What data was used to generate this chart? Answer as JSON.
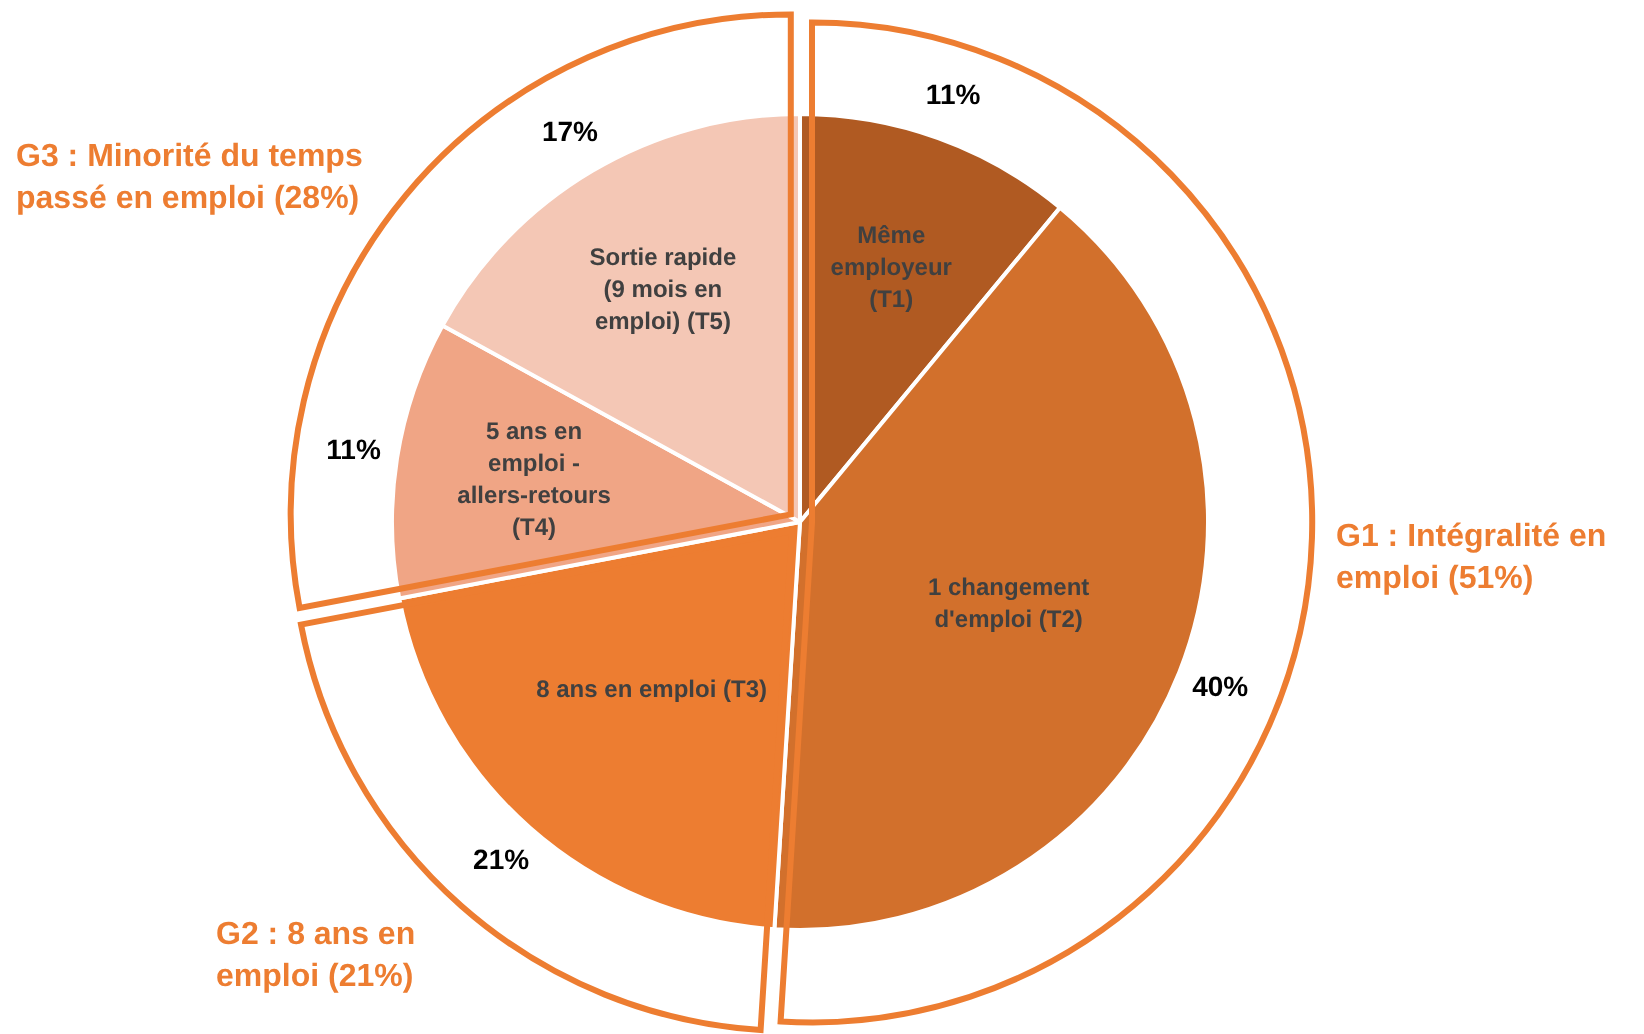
{
  "chart_data": {
    "type": "pie",
    "categories": [
      "Même employeur (T1)",
      "1 changement d'emploi (T2)",
      "8 ans en emploi (T3)",
      "5 ans en emploi - allers-retours (T4)",
      "Sortie rapide (9 mois en emploi) (T5)"
    ],
    "values": [
      11,
      40,
      21,
      11,
      17
    ],
    "colors": [
      "#b05a22",
      "#d2702c",
      "#ed7d31",
      "#f0a585",
      "#f4c7b5"
    ],
    "value_labels": [
      "11%",
      "40%",
      "21%",
      "11%",
      "17%"
    ],
    "annotations": [
      "G1 : Intégralité en emploi (51%)",
      "G2 : 8 ans en emploi (21%)",
      "G3 : Minorité du temps passé en emploi (28%)"
    ],
    "legend": false
  }
}
